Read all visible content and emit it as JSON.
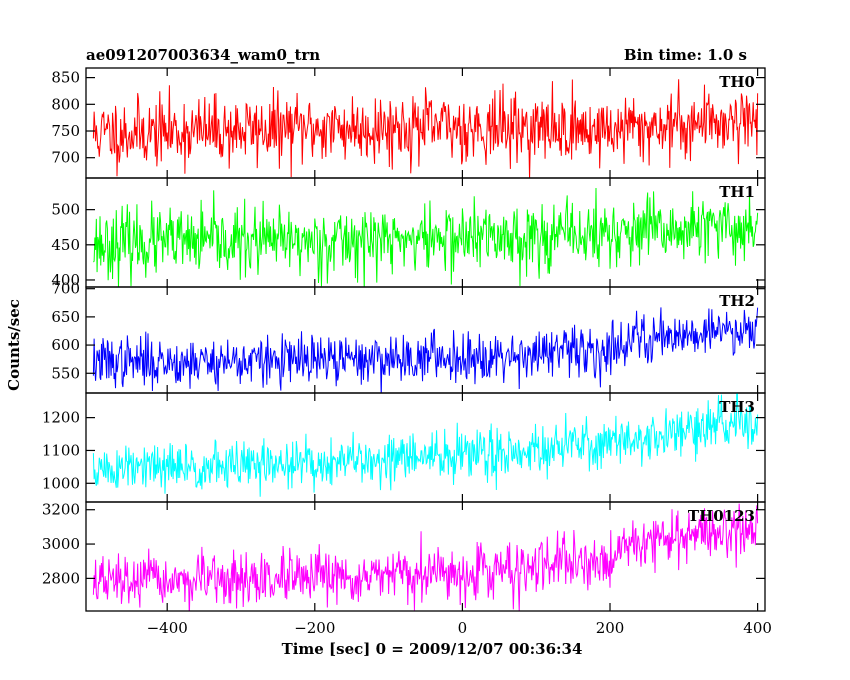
{
  "chart_data": {
    "type": "line",
    "title": "ae091207003634_wam0_trn",
    "bin_time": "Bin time: 1.0 s",
    "xlabel": "Time [sec] 0 = 2009/12/07 00:36:34",
    "ylabel": "Counts/sec",
    "xlim": [
      -510,
      410
    ],
    "x_ticks": [
      -400,
      -200,
      0,
      200,
      400
    ],
    "x_tick_labels": [
      "−400",
      "−200",
      "0",
      "200",
      "400"
    ],
    "x_range_data": [
      -500,
      400
    ],
    "panels": [
      {
        "name": "TH0",
        "color": "#ff0000",
        "ylim": [
          662,
          868
        ],
        "yticks": [
          700,
          750,
          800,
          850
        ],
        "ytick_labels": [
          "700",
          "750",
          "800",
          "850"
        ],
        "trend": [
          [
            -500,
            745
          ],
          [
            -200,
            755
          ],
          [
            0,
            758
          ],
          [
            200,
            752
          ],
          [
            400,
            775
          ]
        ],
        "noise_sd": 32,
        "seed": 11
      },
      {
        "name": "TH1",
        "color": "#00ff00",
        "ylim": [
          390,
          545
        ],
        "yticks": [
          400,
          450,
          500
        ],
        "ytick_labels": [
          "400",
          "450",
          "500"
        ],
        "trend": [
          [
            -500,
            452
          ],
          [
            -200,
            455
          ],
          [
            0,
            460
          ],
          [
            200,
            465
          ],
          [
            400,
            475
          ]
        ],
        "noise_sd": 24,
        "seed": 23
      },
      {
        "name": "TH2",
        "color": "#0000ff",
        "ylim": [
          515,
          703
        ],
        "yticks": [
          550,
          600,
          650,
          700
        ],
        "ytick_labels": [
          "550",
          "600",
          "650",
          "700"
        ],
        "trend": [
          [
            -500,
            570
          ],
          [
            -200,
            572
          ],
          [
            0,
            580
          ],
          [
            200,
            590
          ],
          [
            220,
            610
          ],
          [
            400,
            632
          ]
        ],
        "noise_sd": 22,
        "seed": 37
      },
      {
        "name": "TH3",
        "color": "#00ffff",
        "ylim": [
          943,
          1275
        ],
        "yticks": [
          1000,
          1100,
          1200
        ],
        "ytick_labels": [
          "1000",
          "1100",
          "1200"
        ],
        "trend": [
          [
            -500,
            1040
          ],
          [
            -200,
            1060
          ],
          [
            0,
            1085
          ],
          [
            200,
            1125
          ],
          [
            400,
            1190
          ]
        ],
        "noise_sd": 38,
        "seed": 51
      },
      {
        "name": "TH0123",
        "color": "#ff00ff",
        "ylim": [
          2610,
          3245
        ],
        "yticks": [
          2800,
          3000,
          3200
        ],
        "ytick_labels": [
          "2800",
          "3000",
          "3200"
        ],
        "trend": [
          [
            -500,
            2780
          ],
          [
            -200,
            2790
          ],
          [
            0,
            2830
          ],
          [
            200,
            2900
          ],
          [
            220,
            3010
          ],
          [
            400,
            3090
          ]
        ],
        "noise_sd": 75,
        "seed": 67
      }
    ]
  }
}
